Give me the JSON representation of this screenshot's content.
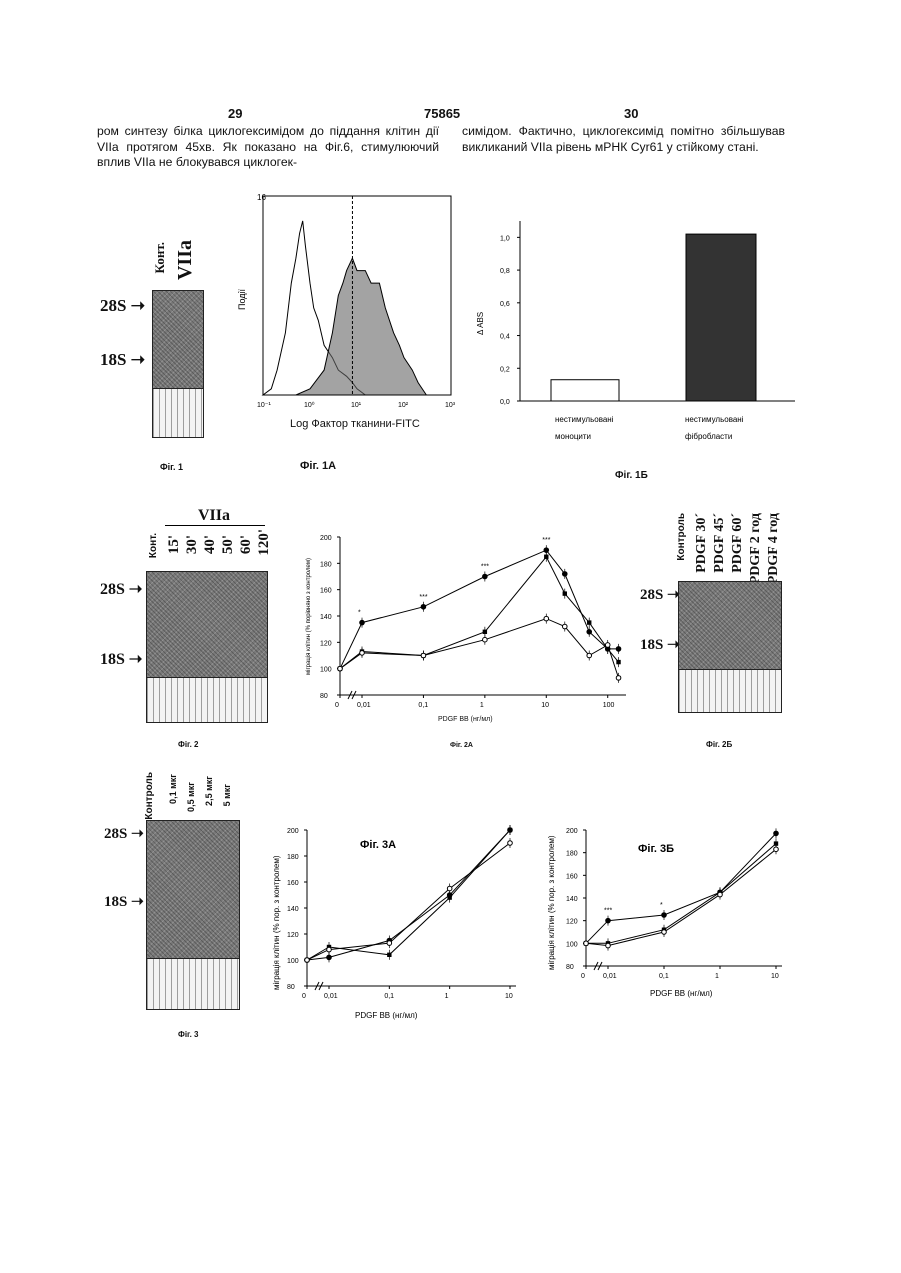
{
  "header": {
    "page_left": "29",
    "patent_no": "75865",
    "page_right": "30"
  },
  "text": {
    "left": "ром синтезу білка циклогексимідом до піддання клітин дії VIIa протягом 45хв. Як показано на Фіг.6, стимулюючий вплив VIIa не блокувався циклогек-",
    "right": "симідом. Фактично, циклогексимід помітно збільшував викликаний VIIa рівень мРНК Cyr61 у стійкому стані."
  },
  "fig1": {
    "caption": "Фіг. 1",
    "band_28s": "28S",
    "band_18s": "18S",
    "lanes": [
      "Конт.",
      "VIIa"
    ]
  },
  "fig1a": {
    "caption": "Фіг. 1А",
    "ylabel": "Події",
    "xlabel": "Log  Фактор тканини-FITC",
    "chart_data": {
      "type": "area",
      "x_scale": "log",
      "xlim": [
        0.1,
        1000
      ],
      "ylim": [
        0,
        16
      ],
      "x_ticks": [
        "10⁻¹",
        "10⁰",
        "10¹",
        "10²",
        "10³"
      ],
      "y_ticks": [
        "16"
      ],
      "series": [
        {
          "x": [
            0.1,
            0.15,
            0.2,
            0.3,
            0.4,
            0.5,
            0.6,
            0.7,
            0.8,
            1,
            1.2,
            1.5,
            2,
            3,
            4,
            6,
            8,
            10,
            15
          ],
          "values": [
            0,
            0.5,
            2,
            5,
            9,
            11,
            13,
            14,
            12,
            9,
            7,
            6,
            4,
            3,
            2,
            1.5,
            1,
            0.5,
            0
          ]
        },
        {
          "x": [
            0.5,
            1,
            2,
            3,
            4,
            5,
            6,
            8,
            10,
            15,
            20,
            30,
            40,
            60,
            80,
            100,
            150,
            200,
            300
          ],
          "values": [
            0,
            0.5,
            2,
            5,
            8,
            9,
            10,
            11,
            10,
            10,
            9,
            9,
            7,
            5,
            4,
            3,
            2,
            1,
            0
          ]
        }
      ],
      "marker_x": 8
    }
  },
  "fig1b": {
    "caption": "Фіг. 1Б",
    "ylabel": "Δ ABS",
    "chart_data": {
      "type": "bar",
      "categories": [
        "нестимульовані моноцити",
        "нестимульовані фібробласти"
      ],
      "values": [
        0.13,
        1.02
      ],
      "ylim": [
        0,
        1.1
      ],
      "y_ticks": [
        "0,0",
        "0,2",
        "0,4",
        "0,6",
        "0,8",
        "1,0"
      ]
    },
    "cat_line1": [
      "нестимульовані",
      "нестимульовані"
    ],
    "cat_line2": [
      "моноцити",
      "фібробласти"
    ]
  },
  "fig2": {
    "caption": "Фіг. 2",
    "band_28s": "28S",
    "band_18s": "18S",
    "group": "VIIa",
    "lanes": [
      "Конт.",
      "15'",
      "30'",
      "40'",
      "50'",
      "60'",
      "120'"
    ]
  },
  "fig2a": {
    "caption": "Фіг. 2А",
    "ylabel": "міграція клітин (% порівняно з контролем)",
    "xlabel": "PDGF BB (нг/мл)",
    "chart_data": {
      "type": "line",
      "x_scale": "log",
      "ylim": [
        80,
        200
      ],
      "y_ticks": [
        "80",
        "100",
        "120",
        "140",
        "160",
        "180",
        "200"
      ],
      "x_ticks": [
        "0",
        "0,01",
        "0,1",
        "1",
        "10",
        "100"
      ],
      "series": [
        {
          "marker": "filled-circle",
          "x": [
            0,
            0.01,
            0.1,
            1,
            10,
            20,
            50,
            100,
            150
          ],
          "values": [
            100,
            135,
            147,
            170,
            190,
            172,
            128,
            115,
            115
          ]
        },
        {
          "marker": "filled-square",
          "x": [
            0,
            0.01,
            0.1,
            1,
            10,
            20,
            50,
            100,
            150
          ],
          "values": [
            100,
            113,
            110,
            128,
            185,
            157,
            135,
            115,
            105
          ]
        },
        {
          "marker": "open-circle",
          "x": [
            0,
            0.01,
            0.1,
            1,
            10,
            20,
            50,
            100,
            150
          ],
          "values": [
            100,
            112,
            110,
            122,
            138,
            132,
            110,
            118,
            93
          ]
        }
      ],
      "annotations": [
        {
          "x": 0.01,
          "text": "*"
        },
        {
          "x": 0.1,
          "text": "***"
        },
        {
          "x": 1,
          "text": "***"
        },
        {
          "x": 10,
          "text": "***"
        }
      ]
    }
  },
  "fig2b": {
    "caption": "Фіг. 2Б",
    "band_28s": "28S",
    "band_18s": "18S",
    "lanes": [
      "Контроль",
      "PDGF 30´",
      "PDGF 45´",
      "PDGF 60´",
      "PDGF 2 год",
      "PDGF 4 год"
    ]
  },
  "fig3": {
    "caption": "Фіг. 3",
    "band_28s": "28S",
    "band_18s": "18S",
    "lanes": [
      "Контроль",
      "0,1 мкг",
      "0,5 мкг",
      "2,5 мкг",
      "5 мкг"
    ]
  },
  "fig3a": {
    "title": "Фіг. 3А",
    "ylabel": "міграція клітин (% пор. з контролем)",
    "xlabel": "PDGF BB (нг/мл)",
    "chart_data": {
      "type": "line",
      "x_scale": "log",
      "ylim": [
        80,
        200
      ],
      "y_ticks": [
        "80",
        "100",
        "120",
        "140",
        "160",
        "180",
        "200"
      ],
      "x_ticks": [
        "0",
        "0,01",
        "0,1",
        "1",
        "10"
      ],
      "series": [
        {
          "marker": "filled-circle",
          "x": [
            0,
            0.01,
            0.1,
            1,
            10
          ],
          "values": [
            100,
            102,
            115,
            150,
            200
          ]
        },
        {
          "marker": "filled-square",
          "x": [
            0,
            0.01,
            0.1,
            1,
            10
          ],
          "values": [
            100,
            110,
            104,
            148,
            200
          ]
        },
        {
          "marker": "open-circle",
          "x": [
            0,
            0.01,
            0.1,
            1,
            10
          ],
          "values": [
            100,
            108,
            113,
            155,
            190
          ]
        }
      ]
    }
  },
  "fig3b": {
    "title": "Фіг. 3Б",
    "ylabel": "міграція клітин (% пор. з контролем)",
    "xlabel": "PDGF BB (нг/мл)",
    "chart_data": {
      "type": "line",
      "x_scale": "log",
      "ylim": [
        80,
        200
      ],
      "y_ticks": [
        "80",
        "100",
        "120",
        "140",
        "160",
        "180",
        "200"
      ],
      "x_ticks": [
        "0",
        "0,01",
        "0,1",
        "1",
        "10"
      ],
      "series": [
        {
          "marker": "filled-circle",
          "x": [
            0,
            0.01,
            0.1,
            1,
            10
          ],
          "values": [
            100,
            120,
            125,
            145,
            197
          ]
        },
        {
          "marker": "filled-square",
          "x": [
            0,
            0.01,
            0.1,
            1,
            10
          ],
          "values": [
            100,
            100,
            112,
            145,
            188
          ]
        },
        {
          "marker": "open-circle",
          "x": [
            0,
            0.01,
            0.1,
            1,
            10
          ],
          "values": [
            100,
            98,
            110,
            143,
            183
          ]
        }
      ],
      "annotations": [
        {
          "x": 0.01,
          "text": "***"
        },
        {
          "x": 0.1,
          "text": "*"
        }
      ]
    }
  }
}
